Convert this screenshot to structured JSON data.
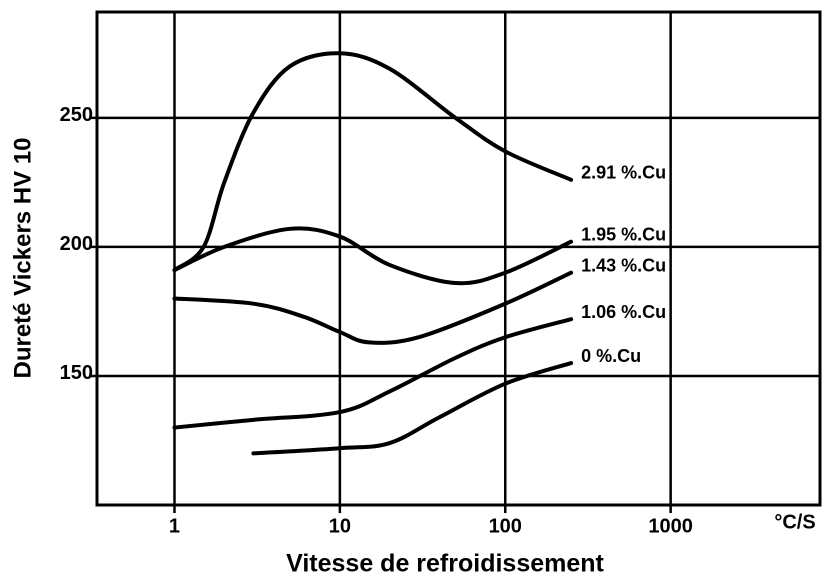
{
  "chart_data": {
    "type": "line",
    "xlabel": "Vitesse de refroidissement",
    "ylabel": "Dureté Vickers HV 10",
    "x_unit": "°C/S",
    "xscale": "log",
    "xlim": [
      0.34,
      8000
    ],
    "xticks": [
      1,
      10,
      100,
      1000
    ],
    "ylim": [
      100,
      291
    ],
    "yticks": [
      150,
      200,
      250
    ],
    "grid": true,
    "series": [
      {
        "name": "2.91 %.Cu",
        "color": "#000000",
        "x": [
          1,
          1.5,
          2,
          3,
          5,
          10,
          20,
          50,
          100,
          250
        ],
        "values": [
          191,
          200,
          225,
          252,
          270,
          275,
          269,
          250,
          237,
          226
        ]
      },
      {
        "name": "1.95 %.Cu",
        "color": "#000000",
        "x": [
          1,
          2,
          5,
          10,
          20,
          50,
          100,
          250
        ],
        "values": [
          191,
          200,
          207,
          204,
          193,
          186,
          190,
          202
        ]
      },
      {
        "name": "1.43 %.Cu",
        "color": "#000000",
        "x": [
          1,
          3,
          6,
          10,
          15,
          30,
          100,
          250
        ],
        "values": [
          180,
          178,
          173,
          167,
          163,
          165,
          178,
          190
        ]
      },
      {
        "name": "1.06 %.Cu",
        "color": "#000000",
        "x": [
          1,
          3,
          10,
          20,
          50,
          100,
          250
        ],
        "values": [
          130,
          133,
          136,
          144,
          157,
          165,
          172
        ]
      },
      {
        "name": "0 %.Cu",
        "color": "#000000",
        "x": [
          3,
          10,
          20,
          40,
          100,
          250
        ],
        "values": [
          120,
          122,
          124,
          134,
          147,
          155
        ]
      }
    ]
  }
}
